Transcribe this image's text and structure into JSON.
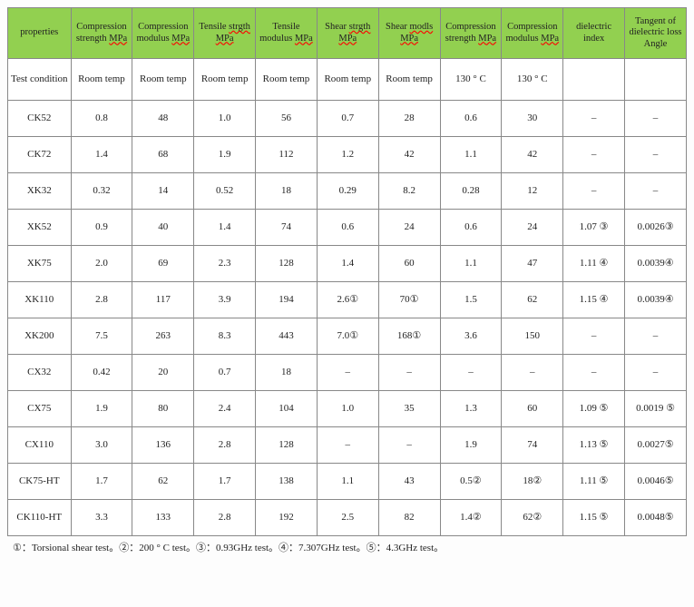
{
  "header": {
    "bg_color": "#92d050",
    "cells": [
      {
        "plain": "properties"
      },
      {
        "pre": "Compression strength ",
        "sq": "MPa"
      },
      {
        "pre": "Compression modulus ",
        "sq": "MPa"
      },
      {
        "pre": "Tensile ",
        "sq": "strgth",
        "post_sq": "MPa"
      },
      {
        "pre": "Tensile modulus ",
        "sq": "MPa"
      },
      {
        "pre": "Shear ",
        "sq": "strgth",
        "post_sq": "MPa"
      },
      {
        "pre": "Shear    ",
        "sq": "modls",
        "post_sq": "MPa"
      },
      {
        "pre": "Compression strength ",
        "sq": "MPa"
      },
      {
        "pre": "Compression modulus ",
        "sq": "MPa"
      },
      {
        "plain": "dielectric index"
      },
      {
        "plain": "Tangent of dielectric loss Angle"
      }
    ]
  },
  "rows": [
    [
      "Test condition",
      "Room temp",
      "Room temp",
      "Room temp",
      "Room temp",
      "Room temp",
      "Room temp",
      "130 ° C",
      "130 ° C",
      "",
      ""
    ],
    [
      "CK52",
      "0.8",
      "48",
      "1.0",
      "56",
      "0.7",
      "28",
      "0.6",
      "30",
      "–",
      "–"
    ],
    [
      "CK72",
      "1.4",
      "68",
      "1.9",
      "112",
      "1.2",
      "42",
      "1.1",
      "42",
      "–",
      "–"
    ],
    [
      "XK32",
      "0.32",
      "14",
      "0.52",
      "18",
      "0.29",
      "8.2",
      "0.28",
      "12",
      "–",
      "–"
    ],
    [
      "XK52",
      "0.9",
      "40",
      "1.4",
      "74",
      "0.6",
      "24",
      "0.6",
      "24",
      "1.07 ③",
      "0.0026③"
    ],
    [
      "XK75",
      "2.0",
      "69",
      "2.3",
      "128",
      "1.4",
      "60",
      "1.1",
      "47",
      "1.11 ④",
      "0.0039④"
    ],
    [
      "XK110",
      "2.8",
      "117",
      "3.9",
      "194",
      "2.6①",
      "70①",
      "1.5",
      "62",
      "1.15 ④",
      "0.0039④"
    ],
    [
      "XK200",
      "7.5",
      "263",
      "8.3",
      "443",
      "7.0①",
      "168①",
      "3.6",
      "150",
      "–",
      "–"
    ],
    [
      "CX32",
      "0.42",
      "20",
      "0.7",
      "18",
      "–",
      "–",
      "–",
      "–",
      "–",
      "–"
    ],
    [
      "CX75",
      "1.9",
      "80",
      "2.4",
      "104",
      "1.0",
      "35",
      "1.3",
      "60",
      "1.09 ⑤",
      "0.0019 ⑤"
    ],
    [
      "CX110",
      "3.0",
      "136",
      "2.8",
      "128",
      "–",
      "–",
      "1.9",
      "74",
      "1.13 ⑤",
      "0.0027⑤"
    ],
    [
      "CK75-HT",
      "1.7",
      "62",
      "1.7",
      "138",
      "1.1",
      "43",
      "0.5②",
      "18②",
      "1.11 ⑤",
      "0.0046⑤"
    ],
    [
      "CK110-HT",
      "3.3",
      "133",
      "2.8",
      "192",
      "2.5",
      "82",
      "1.4②",
      "62②",
      "1.15 ⑤",
      "0.0048⑤"
    ]
  ],
  "footer": "①：Torsional shear test。②：200 ° C test。③：0.93GHz test。④：7.307GHz test。⑤：4.3GHz test。"
}
